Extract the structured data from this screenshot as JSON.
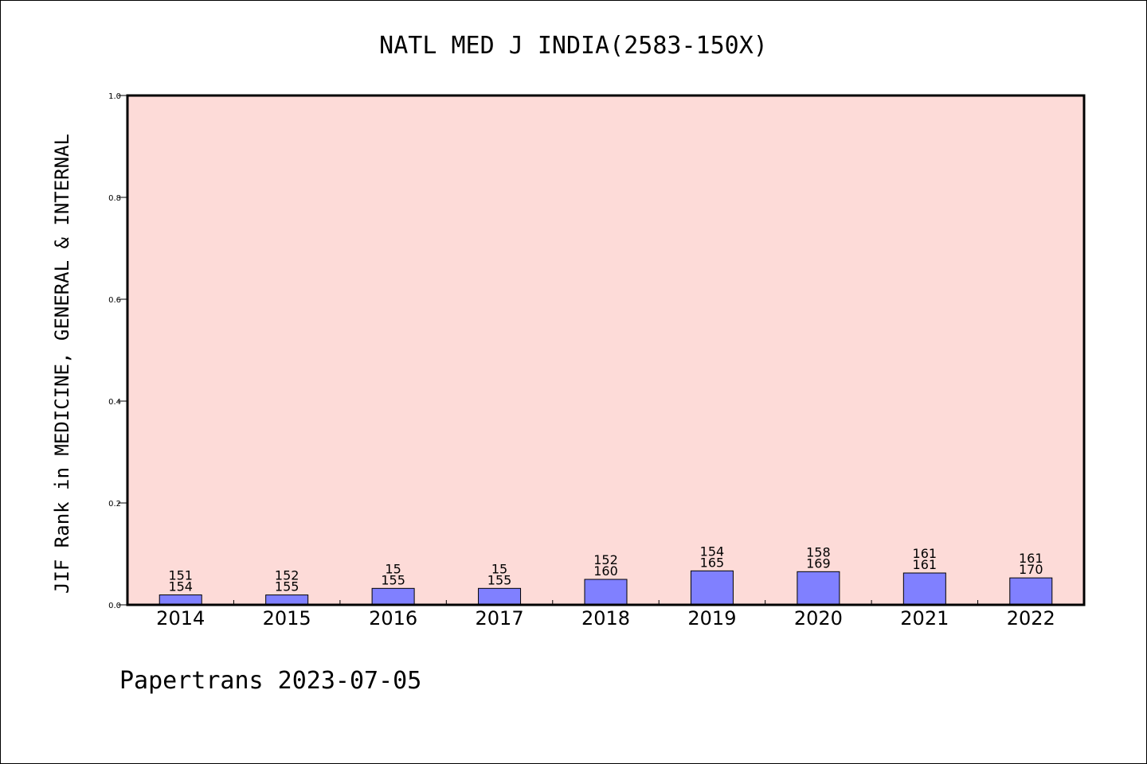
{
  "chart_data": {
    "type": "bar",
    "title": "NATL MED J INDIA(2583-150X)",
    "ylabel": "JIF Rank in MEDICINE, GENERAL & INTERNAL",
    "xlabel": "",
    "ylim": [
      0,
      1.0
    ],
    "yticks": [
      "0.0",
      "0.2",
      "0.4",
      "0.6",
      "0.8",
      "1.0"
    ],
    "categories": [
      "2014",
      "2015",
      "2016",
      "2017",
      "2018",
      "2019",
      "2020",
      "2021",
      "2022"
    ],
    "values": [
      0.0195,
      0.0194,
      0.0323,
      0.0323,
      0.05,
      0.0667,
      0.0651,
      0.0625,
      0.0529
    ],
    "labels_top": [
      "151",
      "152",
      "15",
      "15",
      "152",
      "154",
      "158",
      "161",
      "161"
    ],
    "labels_bottom": [
      "154",
      "155",
      "155",
      "155",
      "160",
      "165",
      "169",
      "161",
      "170"
    ],
    "grid": false,
    "colors": {
      "plot_bg": "#fddbd8",
      "bar": "#8080ff",
      "bar_edge": "#000000"
    }
  },
  "footer": "Papertrans 2023-07-05"
}
